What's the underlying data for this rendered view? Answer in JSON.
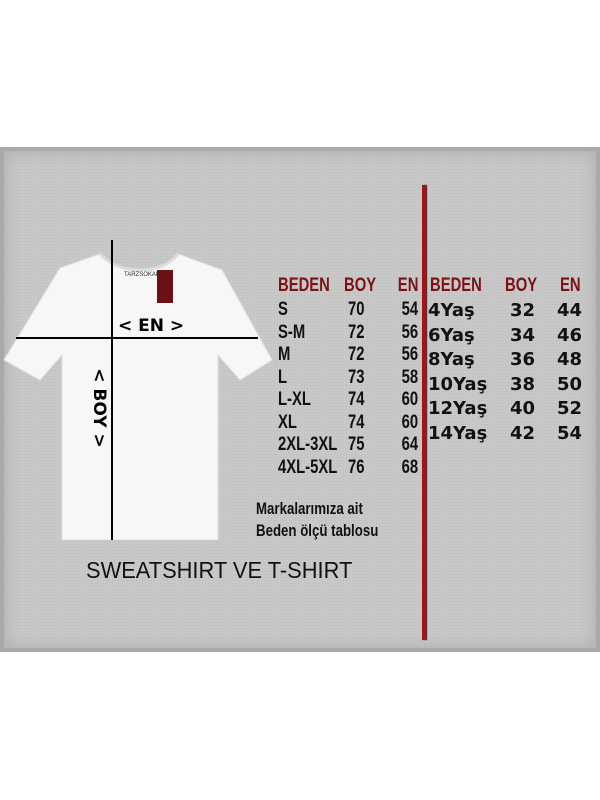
{
  "brand_label": "TARZSOKAK",
  "diagram": {
    "width_label": "< EN >",
    "length_label": "< BOY >"
  },
  "adult_table": {
    "headers": [
      "BEDEN",
      "BOY",
      "EN"
    ],
    "rows": [
      [
        "S",
        "70",
        "54"
      ],
      [
        "S-M",
        "72",
        "56"
      ],
      [
        "M",
        "72",
        "56"
      ],
      [
        "L",
        "73",
        "58"
      ],
      [
        "L-XL",
        "74",
        "60"
      ],
      [
        "XL",
        "74",
        "60"
      ],
      [
        "2XL-3XL",
        "75",
        "64"
      ],
      [
        "4XL-5XL",
        "76",
        "68"
      ]
    ]
  },
  "kids_table": {
    "headers": [
      "BEDEN",
      "BOY",
      "EN"
    ],
    "rows": [
      [
        "4Yaş",
        "32",
        "44"
      ],
      [
        "6Yaş",
        "34",
        "46"
      ],
      [
        "8Yaş",
        "36",
        "48"
      ],
      [
        "10Yaş",
        "38",
        "50"
      ],
      [
        "12Yaş",
        "40",
        "52"
      ],
      [
        "14Yaş",
        "42",
        "54"
      ]
    ]
  },
  "note": {
    "line1": "Markalarımıza ait",
    "line2": "Beden ölçü tablosu"
  },
  "title": "SWEATSHIRT VE T-SHIRT",
  "colors": {
    "header": "#7a1216",
    "divider": "#a0141a",
    "background": "#c8c8c8"
  }
}
